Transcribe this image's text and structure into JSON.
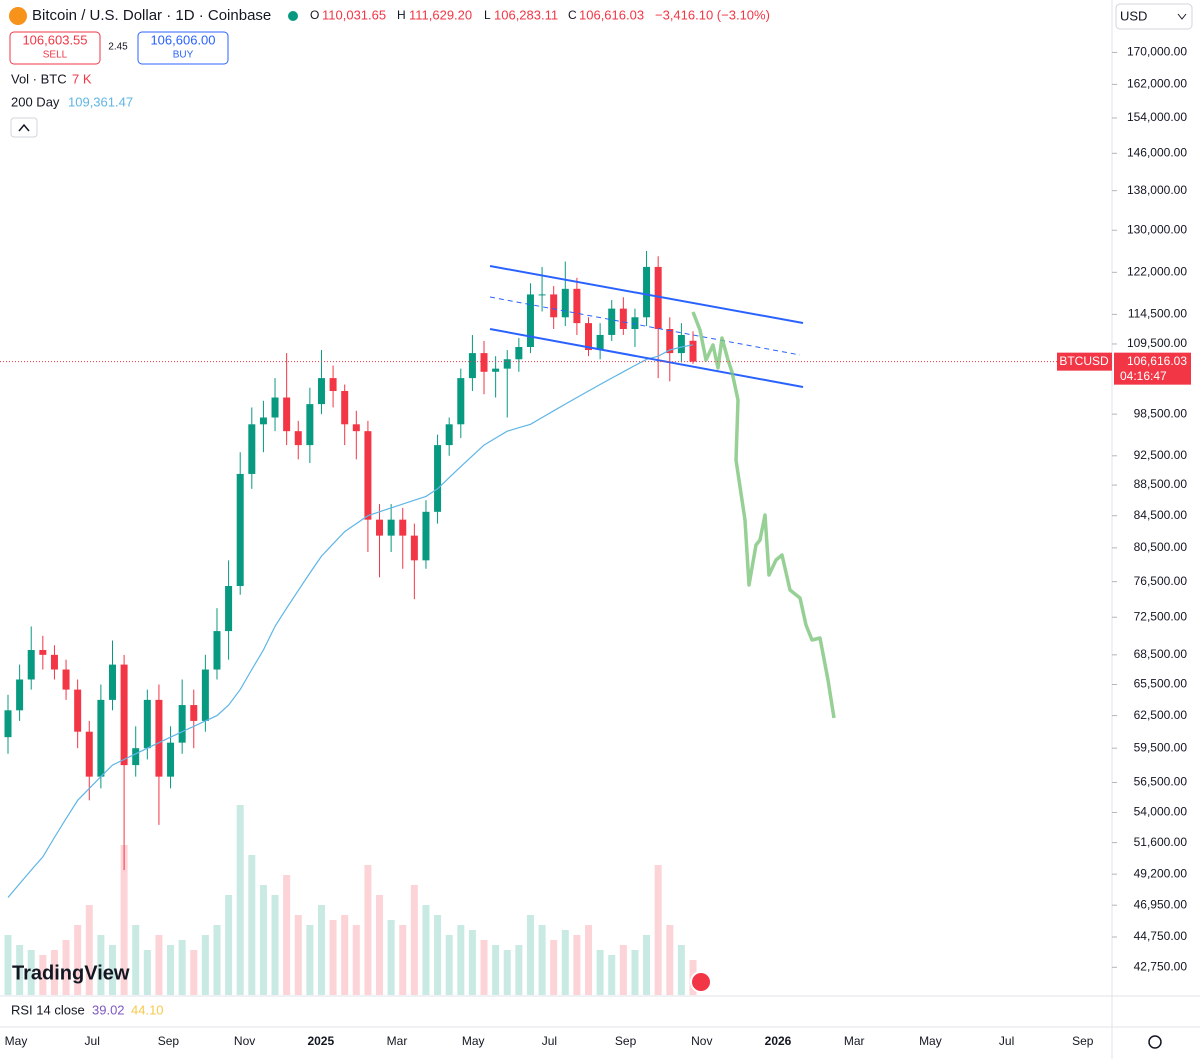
{
  "chart_data": {
    "type": "candlestick",
    "title": "Bitcoin / U.S. Dollar · 1D · Coinbase",
    "ohlc_header": {
      "o": "O",
      "open": "110,031.65",
      "h": "H",
      "high": "111,629.20",
      "l": "L",
      "low": "106,283.11",
      "c": "C",
      "close": "106,616.03",
      "change": "−3,416.10 (−3.10%)"
    },
    "trade": {
      "sell_price": "106,603.55",
      "sell": "SELL",
      "spread": "2.45",
      "buy_price": "106,606.00",
      "buy": "BUY"
    },
    "currency": "USD",
    "logo": "TradingView",
    "log_scale": true,
    "up_color": "#089981",
    "down_color": "#f23645",
    "open": [
      60500,
      63000,
      66000,
      69000,
      68500,
      67000,
      65000,
      61000,
      57000,
      64000,
      67500,
      58000,
      59500,
      64000,
      57000,
      60000,
      63500,
      62000,
      67000,
      71000,
      76000,
      90000,
      97000,
      98000,
      101000,
      96000,
      94000,
      100000,
      104000,
      102000,
      97000,
      96000,
      84000,
      82000,
      84000,
      82000,
      79000,
      85000,
      94000,
      97000,
      104000,
      108000,
      105000,
      105500,
      107000,
      109000,
      118000,
      118000,
      114000,
      119000,
      113000,
      108500,
      111000,
      115500,
      112000,
      114000,
      123000,
      112000,
      108000,
      110031.65
    ],
    "high": [
      64500,
      67500,
      71500,
      70500,
      69500,
      68000,
      66000,
      62000,
      65500,
      70000,
      68500,
      61500,
      65000,
      65500,
      61500,
      66000,
      65000,
      68500,
      73500,
      79000,
      93000,
      99500,
      100500,
      104000,
      108000,
      97500,
      102500,
      108500,
      106000,
      103000,
      99000,
      97500,
      86000,
      86000,
      85500,
      83500,
      86500,
      95500,
      98000,
      105500,
      111000,
      110000,
      107500,
      108500,
      110500,
      120000,
      123000,
      119500,
      124000,
      121000,
      114000,
      113000,
      117000,
      117500,
      115500,
      126000,
      125000,
      114000,
      113000,
      111629.2
    ],
    "low": [
      59000,
      62000,
      65000,
      67000,
      66000,
      64000,
      59500,
      55000,
      56000,
      63000,
      49500,
      57000,
      58500,
      53000,
      56000,
      59000,
      59500,
      61000,
      66000,
      68000,
      75000,
      88000,
      93000,
      96000,
      94000,
      92000,
      91500,
      98500,
      99500,
      94000,
      92000,
      80000,
      77000,
      80000,
      78000,
      74500,
      78000,
      83500,
      92500,
      95000,
      102000,
      101500,
      101000,
      98000,
      105000,
      108000,
      115000,
      112000,
      112500,
      111000,
      107500,
      107000,
      110000,
      111000,
      109000,
      112500,
      104000,
      103500,
      106500,
      106283.11
    ],
    "close": [
      63000,
      66000,
      69000,
      68500,
      67000,
      65000,
      61000,
      57000,
      64000,
      67500,
      58000,
      59500,
      64000,
      57000,
      60000,
      63500,
      62000,
      67000,
      71000,
      76000,
      90000,
      97000,
      98000,
      101000,
      96000,
      94000,
      100000,
      104000,
      102000,
      97000,
      96000,
      84000,
      82000,
      84000,
      82000,
      79000,
      85000,
      94000,
      97000,
      104000,
      108000,
      105000,
      105500,
      107000,
      109000,
      118000,
      118000,
      114000,
      119000,
      113000,
      108500,
      111000,
      115500,
      112000,
      114000,
      123000,
      112000,
      108000,
      111000,
      106616.03
    ],
    "last_price_label": "106,616.03",
    "symbol": "BTCUSD",
    "countdown": "04:16:47",
    "ma": {
      "name": "200 Day",
      "color": "#5eb5e6",
      "last_label": "109,361.47",
      "values": [
        47500,
        48500,
        49500,
        50500,
        52000,
        53500,
        55000,
        56000,
        57000,
        58000,
        58500,
        59000,
        59500,
        60000,
        60500,
        61000,
        61500,
        62000,
        62500,
        63500,
        65000,
        67000,
        69000,
        71500,
        73500,
        75500,
        77500,
        79500,
        81000,
        82500,
        83500,
        84500,
        85000,
        85500,
        86000,
        86500,
        87000,
        88000,
        89500,
        91000,
        92500,
        94000,
        95000,
        96000,
        96500,
        97000,
        98000,
        99000,
        100000,
        101000,
        102000,
        103000,
        104000,
        105000,
        106000,
        107000,
        107500,
        108500,
        109000,
        109361.47
      ]
    },
    "volume": {
      "name": "Vol · BTC",
      "last_label": "7 K",
      "vlim": [
        0,
        40000
      ],
      "values": [
        12000,
        10000,
        9000,
        8000,
        9000,
        11000,
        14000,
        18000,
        12000,
        10000,
        30000,
        14000,
        9000,
        12000,
        10000,
        11000,
        9000,
        12000,
        14000,
        20000,
        38000,
        28000,
        22000,
        20000,
        24000,
        16000,
        14000,
        18000,
        15000,
        16000,
        14000,
        26000,
        20000,
        15000,
        14000,
        22000,
        18000,
        16000,
        12000,
        14000,
        13000,
        11000,
        10000,
        9000,
        10000,
        16000,
        14000,
        11000,
        13000,
        12000,
        14000,
        9000,
        8000,
        10000,
        9000,
        12000,
        26000,
        14000,
        10000,
        7000
      ]
    },
    "rsi": {
      "name": "RSI 14 close",
      "value": "39.02",
      "ma": "44.10"
    },
    "ylim": [
      41000,
      184000
    ],
    "yticks": [
      {
        "value": 170000,
        "label": "170,000.00"
      },
      {
        "value": 162000,
        "label": "162,000.00"
      },
      {
        "value": 154000,
        "label": "154,000.00"
      },
      {
        "value": 146000,
        "label": "146,000.00"
      },
      {
        "value": 138000,
        "label": "138,000.00"
      },
      {
        "value": 130000,
        "label": "130,000.00"
      },
      {
        "value": 122000,
        "label": "122,000.00"
      },
      {
        "value": 114500,
        "label": "114,500.00"
      },
      {
        "value": 109500,
        "label": "109,500.00"
      },
      {
        "value": 98500,
        "label": "98,500.00"
      },
      {
        "value": 92500,
        "label": "92,500.00"
      },
      {
        "value": 88500,
        "label": "88,500.00"
      },
      {
        "value": 84500,
        "label": "84,500.00"
      },
      {
        "value": 80500,
        "label": "80,500.00"
      },
      {
        "value": 76500,
        "label": "76,500.00"
      },
      {
        "value": 72500,
        "label": "72,500.00"
      },
      {
        "value": 68500,
        "label": "68,500.00"
      },
      {
        "value": 65500,
        "label": "65,500.00"
      },
      {
        "value": 62500,
        "label": "62,500.00"
      },
      {
        "value": 59500,
        "label": "59,500.00"
      },
      {
        "value": 56500,
        "label": "56,500.00"
      },
      {
        "value": 54000,
        "label": "54,000.00"
      },
      {
        "value": 51600,
        "label": "51,600.00"
      },
      {
        "value": 49200,
        "label": "49,200.00"
      },
      {
        "value": 46950,
        "label": "46,950.00"
      },
      {
        "value": 44750,
        "label": "44,750.00"
      },
      {
        "value": 42750,
        "label": "42,750.00"
      }
    ],
    "xticks": [
      "May",
      "Jul",
      "Sep",
      "Nov",
      "2025",
      "Mar",
      "May",
      "Jul",
      "Sep",
      "Nov",
      "2026",
      "Mar",
      "May",
      "Jul",
      "Sep"
    ]
  }
}
